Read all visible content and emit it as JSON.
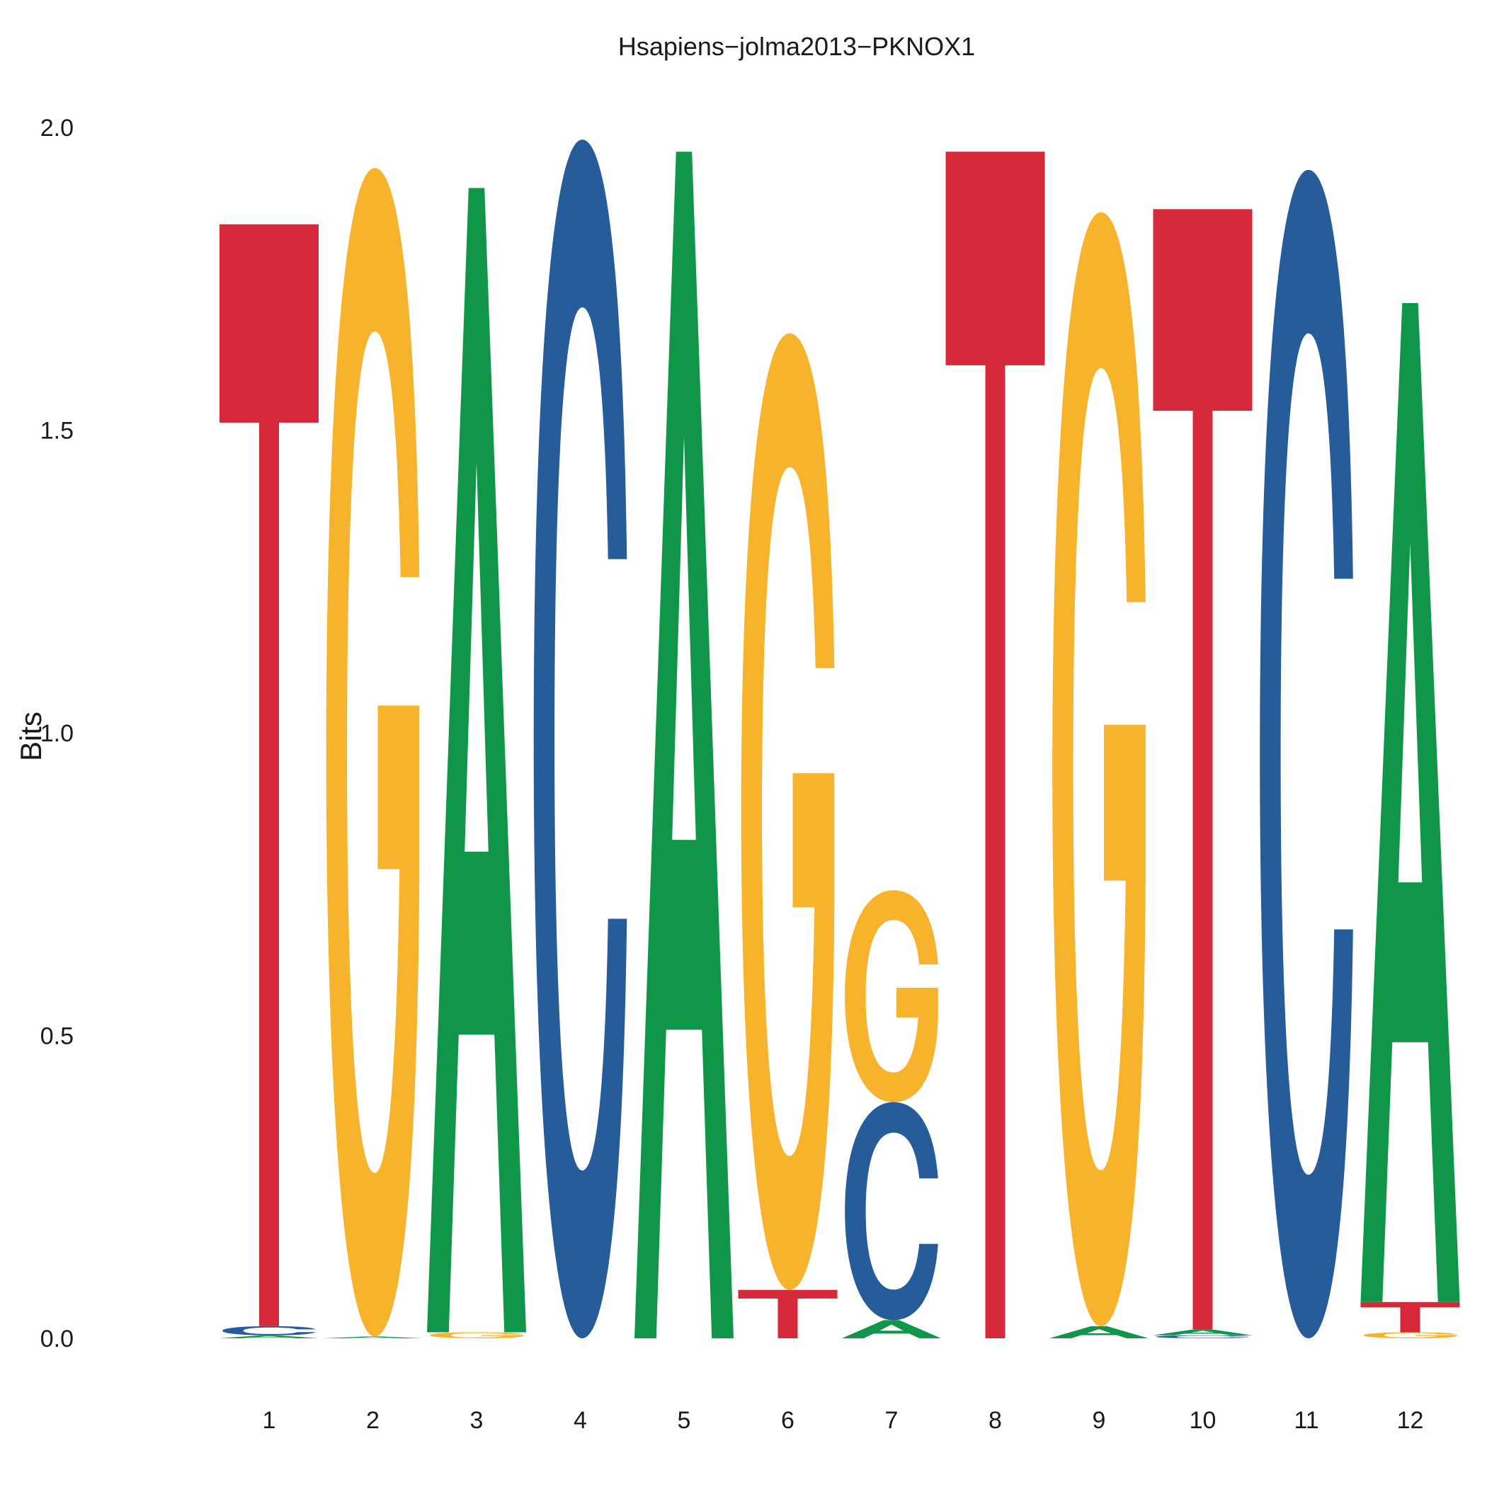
{
  "chart_data": {
    "type": "sequence-logo",
    "title": "Hsapiens−jolma2013−PKNOX1",
    "xlabel": "",
    "ylabel": "Bits",
    "ylim": [
      0,
      2.0
    ],
    "y_ticks": [
      "0.0",
      "0.5",
      "1.0",
      "1.5",
      "2.0"
    ],
    "x_ticks": [
      "1",
      "2",
      "3",
      "4",
      "5",
      "6",
      "7",
      "8",
      "9",
      "10",
      "11",
      "12"
    ],
    "grid": false,
    "colors": {
      "A": "#109648",
      "C": "#255C99",
      "G": "#F7B32B",
      "T": "#D62839"
    },
    "positions": [
      {
        "position": "1",
        "letters": [
          {
            "base": "A",
            "bits": 0.005
          },
          {
            "base": "C",
            "bits": 0.015
          },
          {
            "base": "T",
            "bits": 1.82
          }
        ]
      },
      {
        "position": "2",
        "letters": [
          {
            "base": "A",
            "bits": 0.003
          },
          {
            "base": "G",
            "bits": 1.93
          }
        ]
      },
      {
        "position": "3",
        "letters": [
          {
            "base": "G",
            "bits": 0.01
          },
          {
            "base": "A",
            "bits": 1.89
          }
        ]
      },
      {
        "position": "4",
        "letters": [
          {
            "base": "C",
            "bits": 1.98
          }
        ]
      },
      {
        "position": "5",
        "letters": [
          {
            "base": "A",
            "bits": 1.96
          }
        ]
      },
      {
        "position": "6",
        "letters": [
          {
            "base": "T",
            "bits": 0.08
          },
          {
            "base": "G",
            "bits": 1.58
          }
        ]
      },
      {
        "position": "7",
        "letters": [
          {
            "base": "A",
            "bits": 0.03
          },
          {
            "base": "C",
            "bits": 0.36
          },
          {
            "base": "G",
            "bits": 0.35
          }
        ]
      },
      {
        "position": "8",
        "letters": [
          {
            "base": "T",
            "bits": 1.96
          }
        ]
      },
      {
        "position": "9",
        "letters": [
          {
            "base": "A",
            "bits": 0.02
          },
          {
            "base": "G",
            "bits": 1.84
          }
        ]
      },
      {
        "position": "10",
        "letters": [
          {
            "base": "C",
            "bits": 0.005
          },
          {
            "base": "A",
            "bits": 0.01
          },
          {
            "base": "T",
            "bits": 1.85
          }
        ]
      },
      {
        "position": "11",
        "letters": [
          {
            "base": "C",
            "bits": 1.93
          }
        ]
      },
      {
        "position": "12",
        "letters": [
          {
            "base": "G",
            "bits": 0.01
          },
          {
            "base": "T",
            "bits": 0.05
          },
          {
            "base": "A",
            "bits": 1.65
          }
        ]
      }
    ]
  }
}
